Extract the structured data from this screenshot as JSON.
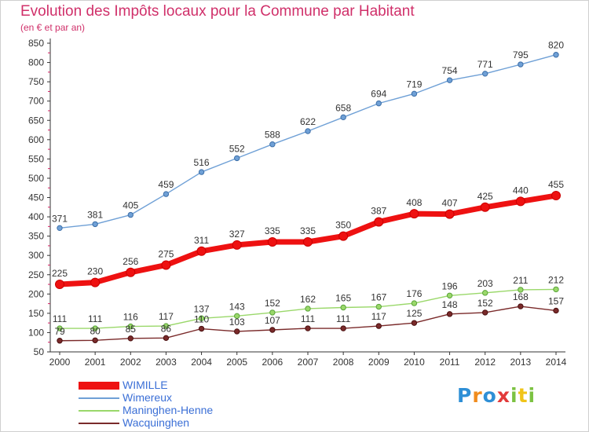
{
  "title": "Evolution des Impôts locaux pour la Commune par Habitant",
  "subtitle": "(en € et par an)",
  "brand": {
    "letters": [
      "P",
      "r",
      "o",
      "x",
      "i",
      "t",
      "i"
    ],
    "colors": [
      "#2e8fd6",
      "#f08c1e",
      "#2e8fd6",
      "#e23a3a",
      "#7cc242",
      "#f0c419",
      "#7cc242"
    ]
  },
  "chart_data": {
    "type": "line",
    "title": "Evolution des Impôts locaux pour la Commune par Habitant",
    "subtitle": "(en € et par an)",
    "xlabel": "",
    "ylabel": "",
    "ylim": [
      50,
      850
    ],
    "yticks": [
      50,
      100,
      150,
      200,
      250,
      300,
      350,
      400,
      450,
      500,
      550,
      600,
      650,
      700,
      750,
      800,
      850
    ],
    "grid": false,
    "legend": "bottom-left",
    "x": [
      "2000",
      "2001",
      "2002",
      "2003",
      "2004",
      "2005",
      "2006",
      "2007",
      "2008",
      "2009",
      "2010",
      "2011",
      "2012",
      "2013",
      "2014"
    ],
    "series": [
      {
        "name": "WIMILLE",
        "color": "#ee1111",
        "values": [
          225,
          230,
          256,
          275,
          311,
          327,
          335,
          335,
          350,
          387,
          408,
          407,
          425,
          440,
          455
        ]
      },
      {
        "name": "Wimereux",
        "color": "#6fa0d6",
        "values": [
          371,
          381,
          405,
          459,
          516,
          552,
          588,
          622,
          658,
          694,
          719,
          754,
          771,
          795,
          820
        ]
      },
      {
        "name": "Maninghen-Henne",
        "color": "#9ad86a",
        "values": [
          111,
          111,
          116,
          117,
          137,
          143,
          152,
          162,
          165,
          167,
          176,
          196,
          203,
          211,
          212
        ]
      },
      {
        "name": "Wacquinghen",
        "color": "#7a2a2a",
        "values": [
          79,
          80,
          85,
          86,
          110,
          103,
          107,
          111,
          111,
          117,
          125,
          148,
          152,
          168,
          157
        ]
      }
    ]
  }
}
